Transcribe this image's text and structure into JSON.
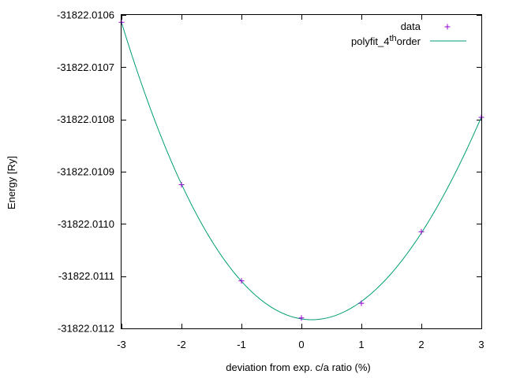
{
  "chart_data": {
    "type": "scatter",
    "xlabel": "deviation from exp. c/a ratio (%)",
    "ylabel": "Energy [Ry]",
    "xlim": [
      -3,
      3
    ],
    "ylim": [
      -31822.0112,
      -31822.0106
    ],
    "x_ticks": [
      -3,
      -2,
      -1,
      0,
      1,
      2,
      3
    ],
    "x_tick_labels": [
      "-3",
      "-2",
      "-1",
      "0",
      "1",
      "2",
      "3"
    ],
    "y_ticks": [
      -31822.0112,
      -31822.0111,
      -31822.011,
      -31822.0109,
      -31822.0108,
      -31822.0107,
      -31822.0106
    ],
    "y_tick_labels": [
      "-31822.0112",
      "-31822.0111",
      "-31822.0110",
      "-31822.0109",
      "-31822.0108",
      "-31822.0107",
      "-31822.0106"
    ],
    "legend_position": "top-right",
    "grid": false,
    "series": [
      {
        "name": "data",
        "kind": "points",
        "marker": "plus",
        "color": "#9400d3",
        "x": [
          -3,
          -2,
          -1,
          0,
          1,
          2,
          3
        ],
        "y": [
          -31822.010614,
          -31822.010925,
          -31822.011109,
          -31822.01118,
          -31822.011152,
          -31822.011015,
          -31822.010796
        ]
      },
      {
        "name_parts": {
          "base": "polyfit_4",
          "superscript": "th",
          "suffix": "order"
        },
        "kind": "line",
        "color": "#009e73",
        "fit_order": 4,
        "x": [
          -3,
          -2,
          -1,
          0,
          1,
          2,
          3
        ],
        "y": [
          -31822.010614,
          -31822.010925,
          -31822.011109,
          -31822.01118,
          -31822.011152,
          -31822.011015,
          -31822.010796
        ]
      }
    ]
  }
}
